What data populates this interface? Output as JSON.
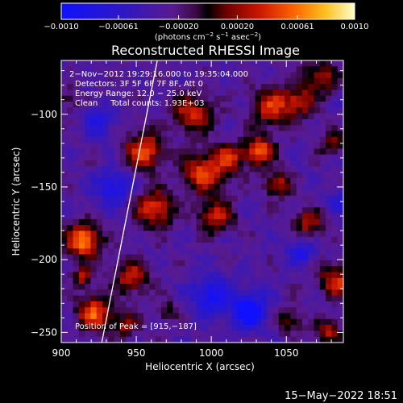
{
  "chart_data": {
    "type": "heatmap",
    "title": "Reconstructed RHESSI Image",
    "xlabel": "Heliocentric X (arcsec)",
    "ylabel": "Heliocentric Y (arcsec)",
    "xlim": [
      900,
      1088
    ],
    "ylim": [
      -257,
      -63
    ],
    "xticks": [
      {
        "value": 900,
        "label": "900"
      },
      {
        "value": 950,
        "label": "950"
      },
      {
        "value": 1000,
        "label": "1000"
      },
      {
        "value": 1050,
        "label": "1050"
      }
    ],
    "yticks": [
      {
        "value": -100,
        "label": "−100"
      },
      {
        "value": -150,
        "label": "−150"
      },
      {
        "value": -200,
        "label": "−200"
      },
      {
        "value": -250,
        "label": "−250"
      }
    ],
    "colorbar": {
      "range": [
        -0.001,
        0.001
      ],
      "ticks": [
        {
          "value": -0.001,
          "label": "−0.0010"
        },
        {
          "value": -0.00061,
          "label": "−0.00061"
        },
        {
          "value": -0.0002,
          "label": "−0.00020"
        },
        {
          "value": 0.0002,
          "label": "0.00020"
        },
        {
          "value": 0.00061,
          "label": "0.00061"
        },
        {
          "value": 0.001,
          "label": "0.0010"
        }
      ],
      "units_prefix": "(photons cm",
      "units_sup1": "−2",
      "units_mid": " s",
      "units_sup2": "−1",
      "units_mid2": " asec",
      "units_sup3": "−2",
      "units_suffix": ")"
    },
    "annotations": [
      "2−Nov−2012 19:29:16.000 to 19:35:04.000",
      "Detectors: 3F 5F 6F 7F 8F, Att 0",
      "Energy Range: 12.0 − 25.0 keV",
      "Clean     Total counts: 1.93E+03"
    ],
    "peak_label": "Position of Peak = [915,−187]",
    "peak": [
      915,
      -187
    ],
    "limb_line": [
      [
        927,
        -257
      ],
      [
        964,
        -63
      ]
    ],
    "sources": [
      {
        "x": 915,
        "y": -187,
        "sigma": 8,
        "amp": 0.001
      },
      {
        "x": 922,
        "y": -237,
        "sigma": 8,
        "amp": 0.00085
      },
      {
        "x": 914,
        "y": -212,
        "sigma": 5,
        "amp": 0.00055
      },
      {
        "x": 955,
        "y": -125,
        "sigma": 9,
        "amp": 0.0008
      },
      {
        "x": 962,
        "y": -165,
        "sigma": 9,
        "amp": 0.00075
      },
      {
        "x": 947,
        "y": -212,
        "sigma": 8,
        "amp": 0.00065
      },
      {
        "x": 942,
        "y": -245,
        "sigma": 6,
        "amp": 0.0005
      },
      {
        "x": 988,
        "y": -100,
        "sigma": 9,
        "amp": 0.0007
      },
      {
        "x": 995,
        "y": -140,
        "sigma": 10,
        "amp": 0.00075
      },
      {
        "x": 1003,
        "y": -170,
        "sigma": 8,
        "amp": 0.00065
      },
      {
        "x": 1012,
        "y": -130,
        "sigma": 7,
        "amp": 0.0006
      },
      {
        "x": 1032,
        "y": -125,
        "sigma": 7,
        "amp": 0.00085
      },
      {
        "x": 1040,
        "y": -95,
        "sigma": 9,
        "amp": 0.0007
      },
      {
        "x": 1044,
        "y": -148,
        "sigma": 6,
        "amp": 0.00065
      },
      {
        "x": 1058,
        "y": -92,
        "sigma": 7,
        "amp": 0.0006
      },
      {
        "x": 1072,
        "y": -75,
        "sigma": 8,
        "amp": 0.0006
      },
      {
        "x": 1065,
        "y": -175,
        "sigma": 7,
        "amp": 0.00055
      },
      {
        "x": 1080,
        "y": -120,
        "sigma": 6,
        "amp": 0.00045
      },
      {
        "x": 1083,
        "y": -215,
        "sigma": 8,
        "amp": 0.0007
      },
      {
        "x": 1078,
        "y": -250,
        "sigma": 6,
        "amp": 0.0006
      },
      {
        "x": 1052,
        "y": -242,
        "sigma": 6,
        "amp": 0.00045
      },
      {
        "x": 970,
        "y": -235,
        "sigma": 5,
        "amp": 0.00035
      },
      {
        "x": 905,
        "y": -90,
        "sigma": 6,
        "amp": 0.0003
      },
      {
        "x": 1025,
        "y": -235,
        "sigma": 8,
        "amp": -0.00085
      },
      {
        "x": 1000,
        "y": -225,
        "sigma": 9,
        "amp": -0.0006
      },
      {
        "x": 935,
        "y": -150,
        "sigma": 8,
        "amp": -0.00055
      },
      {
        "x": 1060,
        "y": -195,
        "sigma": 6,
        "amp": -0.0005
      },
      {
        "x": 925,
        "y": -105,
        "sigma": 7,
        "amp": -0.00045
      },
      {
        "x": 1085,
        "y": -160,
        "sigma": 5,
        "amp": -0.0004
      }
    ]
  },
  "footer_date": "15−May−2022 18:51"
}
